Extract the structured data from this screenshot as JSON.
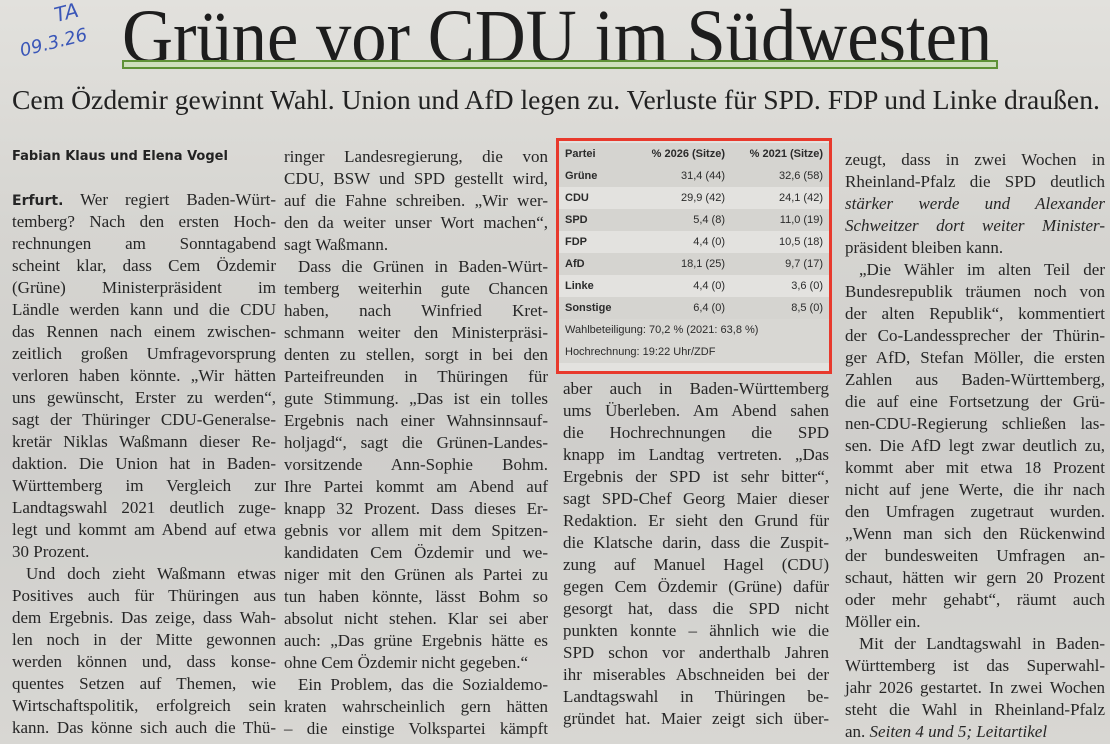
{
  "handwritten_note": {
    "initials": "TA",
    "date": "09.3.26"
  },
  "headline": "Grüne vor CDU im Südwesten",
  "subtitle": "Cem Özdemir gewinnt Wahl. Union und AfD legen zu. Verluste für SPD. FDP und Linke draußen.",
  "accent_color": "#5f9237",
  "highlight_color": "#e8392c",
  "byline": "Fabian Klaus und Elena Vogel",
  "dateline": "Erfurt.",
  "results_table": {
    "headers": [
      "Partei",
      "% 2026 (Sitze)",
      "% 2021 (Sitze)"
    ],
    "rows": [
      {
        "party": "Grüne",
        "r2026": "31,4 (44)",
        "r2021": "32,6 (58)"
      },
      {
        "party": "CDU",
        "r2026": "29,9 (42)",
        "r2021": "24,1 (42)"
      },
      {
        "party": "SPD",
        "r2026": "5,4 (8)",
        "r2021": "11,0 (19)"
      },
      {
        "party": "FDP",
        "r2026": "4,4 (0)",
        "r2021": "10,5 (18)"
      },
      {
        "party": "AfD",
        "r2026": "18,1 (25)",
        "r2021": "9,7 (17)"
      },
      {
        "party": "Linke",
        "r2026": "4,4 (0)",
        "r2021": "3,6 (0)"
      },
      {
        "party": "Sonstige",
        "r2026": "6,4 (0)",
        "r2021": "8,5 (0)"
      }
    ],
    "turnout": "Wahlbeteiligung: 70,2 % (2021: 63,8 %)",
    "source": "Hochrechnung: 19:22 Uhr/ZDF"
  },
  "columns": [
    [
      {
        "t": " Wer regiert Baden-Würt-"
      },
      {
        "t": "temberg? Nach den ersten Hoch-"
      },
      {
        "t": "rechnungen am Sonntagabend"
      },
      {
        "t": "scheint klar, dass Cem Özdemir"
      },
      {
        "t": "(Grüne) Ministerpräsident im"
      },
      {
        "t": "Ländle werden kann und die CDU"
      },
      {
        "t": "das Rennen nach einem zwischen-"
      },
      {
        "t": "zeitlich großen Umfragevorsprung"
      },
      {
        "t": "verloren haben könnte. „Wir hätten"
      },
      {
        "t": "uns gewünscht, Erster zu werden“,"
      },
      {
        "t": "sagt der Thüringer CDU-Generalse-"
      },
      {
        "t": "kretär Niklas Waßmann dieser Re-"
      },
      {
        "t": "daktion. Die Union hat in Baden-"
      },
      {
        "t": "Württemberg im Vergleich zur"
      },
      {
        "t": "Landtagswahl 2021 deutlich zuge-"
      },
      {
        "t": "legt und kommt am Abend auf etwa"
      },
      {
        "t": "30 Prozent.",
        "last": true
      },
      {
        "t": "Und doch zieht Waßmann etwas",
        "ind": true
      },
      {
        "t": "Positives auch für Thüringen aus"
      },
      {
        "t": "dem Ergebnis. Das zeige, dass Wah-"
      },
      {
        "t": "len noch in der Mitte gewonnen"
      },
      {
        "t": "werden können und, dass konse-"
      },
      {
        "t": "quentes Setzen auf Themen, wie"
      },
      {
        "t": "Wirtschaftspolitik, erfolgreich sein"
      },
      {
        "t": "kann. Das könne sich auch die Thü-"
      }
    ],
    [
      {
        "t": "ringer Landesregierung, die von"
      },
      {
        "t": "CDU, BSW und SPD gestellt wird,"
      },
      {
        "t": "auf die Fahne schreiben. „Wir wer-"
      },
      {
        "t": "den da weiter unser Wort machen“,"
      },
      {
        "t": "sagt Waßmann.",
        "last": true
      },
      {
        "t": "Dass die Grünen in Baden-Würt-",
        "ind": true
      },
      {
        "t": "temberg weiterhin gute Chancen"
      },
      {
        "t": "haben, nach Winfried Kret-"
      },
      {
        "t": "schmann weiter den Ministerpräsi-"
      },
      {
        "t": "denten zu stellen, sorgt in bei den"
      },
      {
        "t": "Parteifreunden in Thüringen für"
      },
      {
        "t": "gute Stimmung. „Das ist ein tolles"
      },
      {
        "t": "Ergebnis nach einer Wahnsinnsauf-"
      },
      {
        "t": "holjagd“, sagt die Grünen-Landes-"
      },
      {
        "t": "vorsitzende Ann-Sophie Bohm."
      },
      {
        "t": "Ihre Partei kommt am Abend auf"
      },
      {
        "t": "knapp 32 Prozent. Dass dieses Er-"
      },
      {
        "t": "gebnis vor allem mit dem Spitzen-"
      },
      {
        "t": "kandidaten Cem Özdemir und we-"
      },
      {
        "t": "niger mit den Grünen als Partei zu"
      },
      {
        "t": "tun haben könnte, lässt Bohm so"
      },
      {
        "t": "absolut nicht stehen. Klar sei aber"
      },
      {
        "t": "auch: „Das grüne Ergebnis hätte es"
      },
      {
        "t": "ohne Cem Özdemir nicht gegeben.“",
        "last": true
      },
      {
        "t": "Ein Problem, das die Sozialdemo-",
        "ind": true
      },
      {
        "t": "kraten wahrscheinlich gern hätten"
      },
      {
        "t": "– die einstige Volkspartei kämpft"
      }
    ],
    [
      {
        "t": "aber auch in Baden-Württemberg"
      },
      {
        "t": "ums Überleben. Am Abend sahen"
      },
      {
        "t": "die Hochrechnungen die SPD"
      },
      {
        "t": "knapp im Landtag vertreten. „Das"
      },
      {
        "t": "Ergebnis der SPD ist sehr bitter“,"
      },
      {
        "t": "sagt SPD-Chef Georg Maier dieser"
      },
      {
        "t": "Redaktion. Er sieht den Grund für"
      },
      {
        "t": "die Klatsche darin, dass die Zuspit-"
      },
      {
        "t": "zung auf Manuel Hagel (CDU)"
      },
      {
        "t": "gegen Cem Özdemir (Grüne) dafür"
      },
      {
        "t": "gesorgt hat, dass die SPD nicht"
      },
      {
        "t": "punkten konnte – ähnlich wie die"
      },
      {
        "t": "SPD schon vor anderthalb Jahren"
      },
      {
        "t": "ihr miserables Abschneiden bei der"
      },
      {
        "t": "Landtagswahl in Thüringen be-"
      },
      {
        "t": "gründet hat. Maier zeigt sich über-"
      }
    ],
    [
      {
        "t": "zeugt, dass in zwei Wochen in"
      },
      {
        "t": "Rheinland-Pfalz die SPD deutlich"
      },
      {
        "t": "stärker werde und Alexander",
        "i": true
      },
      {
        "t": "Schweitzer dort weiter Minister-",
        "i": true
      },
      {
        "t": "präsident bleiben kann.",
        "last": true
      },
      {
        "t": "„Die Wähler im alten Teil der",
        "ind": true
      },
      {
        "t": "Bundesrepublik träumen noch von"
      },
      {
        "t": "der alten Republik“, kommentiert"
      },
      {
        "t": "der Co-Landessprecher der Thürin-"
      },
      {
        "t": "ger AfD, Stefan Möller, die ersten"
      },
      {
        "t": "Zahlen aus Baden-Württemberg,"
      },
      {
        "t": "die auf eine Fortsetzung der Grü-"
      },
      {
        "t": "nen-CDU-Regierung schließen las-"
      },
      {
        "t": "sen. Die AfD legt zwar deutlich zu,"
      },
      {
        "t": "kommt aber mit etwa 18 Prozent"
      },
      {
        "t": "nicht auf jene Werte, die ihr nach"
      },
      {
        "t": "den Umfragen zugetraut wurden."
      },
      {
        "t": "„Wenn man sich den Rückenwind"
      },
      {
        "t": "der bundesweiten Umfragen an-"
      },
      {
        "t": "schaut, hätten wir gern 20 Prozent"
      },
      {
        "t": "oder mehr gehabt“, räumt auch"
      },
      {
        "t": "Möller ein.",
        "last": true
      },
      {
        "t": "Mit der Landtagswahl in Baden-",
        "ind": true
      },
      {
        "t": "Württemberg ist das Superwahl-"
      },
      {
        "t": "jahr 2026 gestartet. In zwei Wochen"
      },
      {
        "t": "steht die Wahl in Rheinland-Pfalz"
      },
      {
        "t": "an. ",
        "it": "Seiten 4 und 5; Leitartikel",
        "last": true
      }
    ]
  ]
}
